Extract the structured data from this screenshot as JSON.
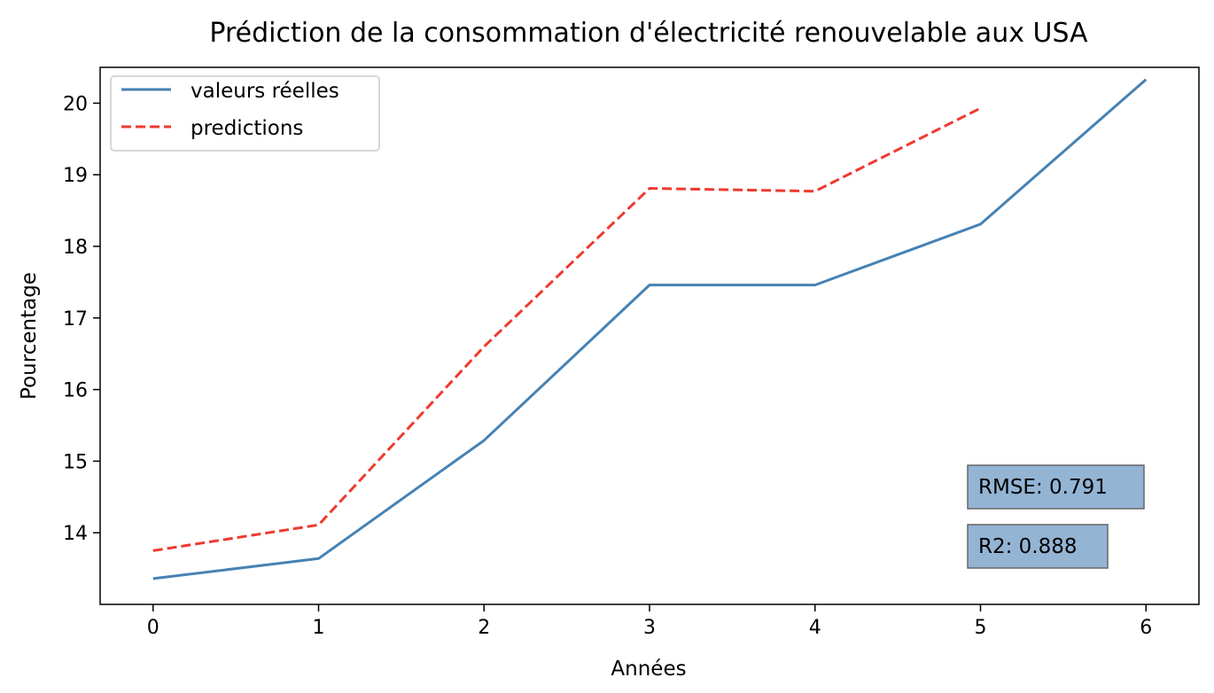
{
  "chart_data": {
    "type": "line",
    "title": "Prédiction de la consommation d'électricité renouvelable aux USA",
    "xlabel": "Années",
    "ylabel": "Pourcentage",
    "x": [
      0,
      1,
      2,
      3,
      4,
      5,
      6
    ],
    "xticks": [
      "0",
      "1",
      "2",
      "3",
      "4",
      "5",
      "6"
    ],
    "yticks": [
      "14",
      "15",
      "16",
      "17",
      "18",
      "19",
      "20"
    ],
    "xlim": [
      -0.32,
      6.32
    ],
    "ylim": [
      13.0,
      20.5
    ],
    "grid": false,
    "legend_position": "top-left",
    "series": [
      {
        "name": "valeurs réelles",
        "style": "solid",
        "color": "#4682b4",
        "x": [
          0,
          1,
          2,
          3,
          4,
          5,
          6
        ],
        "values": [
          13.36,
          13.64,
          15.29,
          17.46,
          17.46,
          18.31,
          20.33
        ]
      },
      {
        "name": "predictions",
        "style": "dashed",
        "color": "#ee3a2f",
        "x": [
          0,
          1,
          2,
          3,
          4,
          5
        ],
        "values": [
          13.75,
          14.11,
          16.6,
          18.81,
          18.77,
          19.93
        ]
      }
    ],
    "annotations": [
      {
        "text": "RMSE: 0.791"
      },
      {
        "text": "R2: 0.888"
      }
    ]
  },
  "colors": {
    "annotation_box": "#94b4d4",
    "annotation_border": "#666666",
    "axes": "#000000",
    "legend_border": "#cccccc"
  }
}
